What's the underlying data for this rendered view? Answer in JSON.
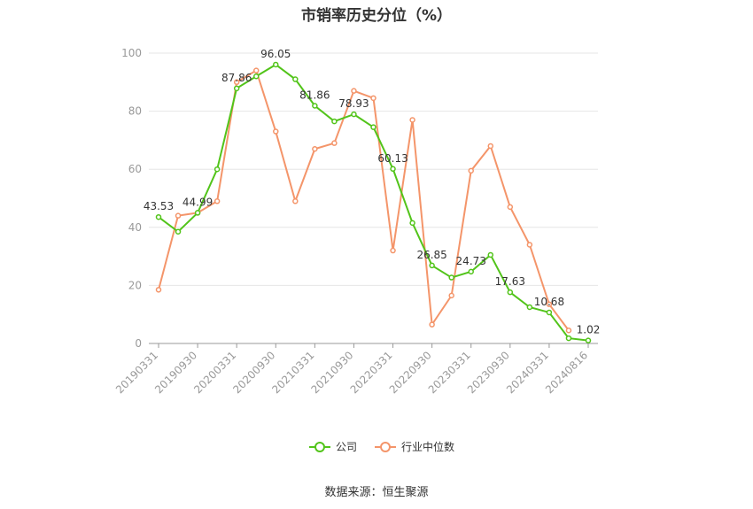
{
  "chart_data": {
    "type": "line",
    "title": "市销率历史分位（%）",
    "source": "数据来源：恒生聚源",
    "ylim": [
      0,
      100
    ],
    "yticks": [
      0,
      20,
      40,
      60,
      80,
      100
    ],
    "x_tick_labels": [
      "20190331",
      "20190930",
      "20200331",
      "20200930",
      "20210331",
      "20210930",
      "20220331",
      "20220930",
      "20230331",
      "20230930",
      "20240331",
      "20240816"
    ],
    "x": [
      "20190331",
      "20190630",
      "20190930",
      "20191231",
      "20200331",
      "20200630",
      "20200930",
      "20201231",
      "20210331",
      "20210630",
      "20210930",
      "20211231",
      "20220331",
      "20220630",
      "20220930",
      "20221231",
      "20230331",
      "20230630",
      "20230930",
      "20231231",
      "20240331",
      "20240630",
      "20240816"
    ],
    "series": [
      {
        "name": "公司",
        "color": "#52c41a",
        "values": [
          43.53,
          38.5,
          44.99,
          60.0,
          87.86,
          92.0,
          96.05,
          91.0,
          81.86,
          76.5,
          78.93,
          74.5,
          60.13,
          41.5,
          26.85,
          22.7,
          24.73,
          30.5,
          17.63,
          12.5,
          10.68,
          1.8,
          1.02
        ],
        "labels": {
          "0": "43.53",
          "2": "44.99",
          "4": "87.86",
          "6": "96.05",
          "8": "81.86",
          "10": "78.93",
          "12": "60.13",
          "14": "26.85",
          "16": "24.73",
          "18": "17.63",
          "20": "10.68",
          "22": "1.02"
        }
      },
      {
        "name": "行业中位数",
        "color": "#f4956a",
        "values": [
          18.5,
          44.0,
          45.0,
          49.0,
          90.0,
          94.0,
          73.0,
          49.0,
          67.0,
          69.0,
          87.0,
          84.5,
          32.0,
          77.0,
          6.5,
          16.5,
          59.5,
          68.0,
          47.0,
          34.0,
          13.5,
          4.5,
          null
        ]
      }
    ],
    "legend": {
      "position": "bottom",
      "items": [
        "公司",
        "行业中位数"
      ]
    },
    "grid": true
  }
}
